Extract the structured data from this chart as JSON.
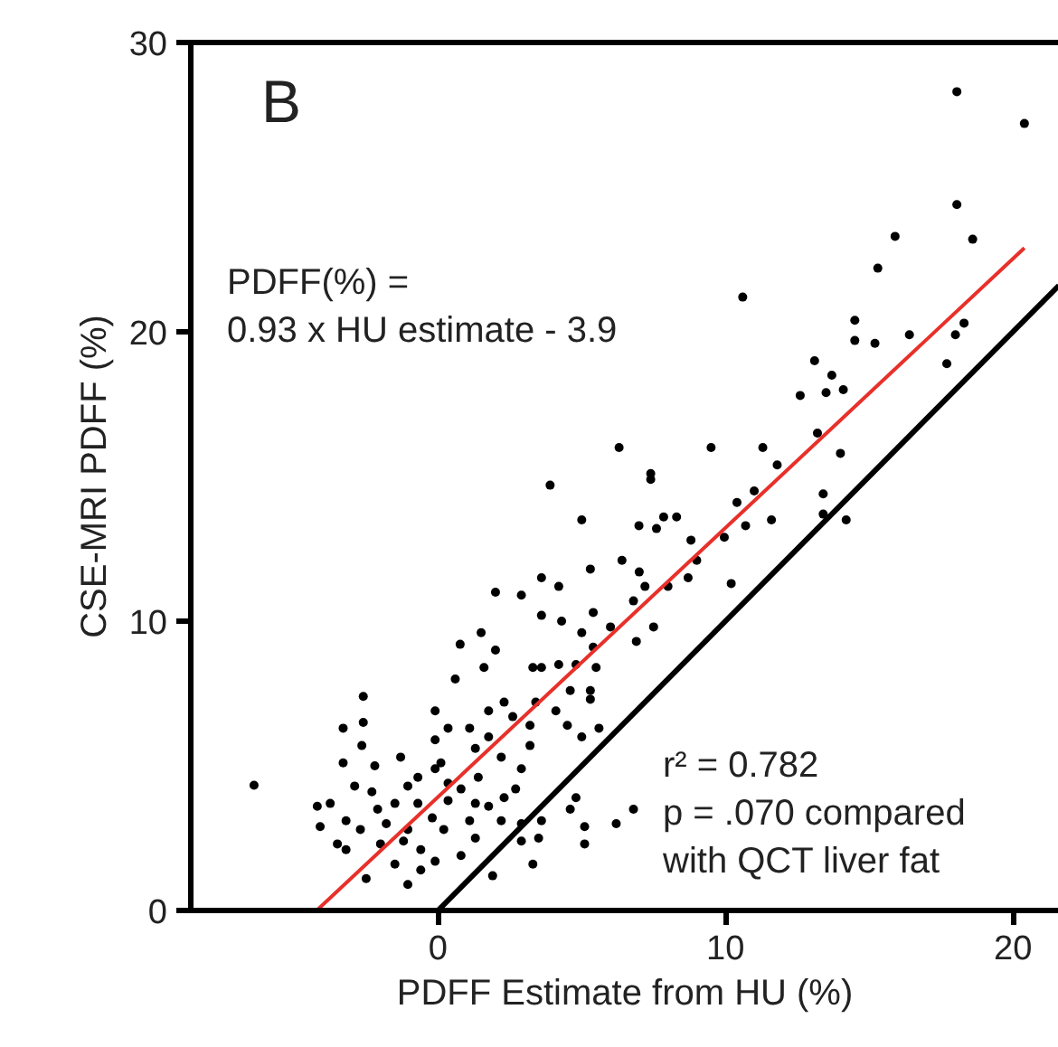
{
  "chart_data": {
    "type": "scatter",
    "xlabel": "PDFF Estimate from HU (%)",
    "ylabel": "CSE-MRI PDFF (%)",
    "xlim": [
      -8.6,
      21.6
    ],
    "ylim": [
      0,
      30
    ],
    "xticks": [
      0,
      10,
      20
    ],
    "yticks": [
      0,
      10,
      20,
      30
    ],
    "annotations": [
      "B",
      "PDFF(%) =\n0.93 x HU estimate - 3.9",
      "r² = 0.782\np = .070 compared\nwith QCT liver fat"
    ],
    "series": [
      {
        "color": "#000000",
        "marker": "circle",
        "x": [
          -6.4,
          18.05,
          20.4,
          18.05,
          18.6,
          15.9,
          15.3,
          10.6,
          14.5,
          14.5,
          15.2,
          16.4,
          18.3,
          18.0,
          17.7,
          13.1,
          13.7,
          13.5,
          14.1,
          12.6,
          13.2,
          14.0,
          14.2,
          13.4,
          13.4,
          11.8,
          11.3,
          9.5,
          11.0,
          10.4,
          11.6,
          10.7,
          9.96,
          10.2,
          8.8,
          9.0,
          8.7,
          7.85,
          8.3,
          7.6,
          6.99,
          7.4,
          7.4,
          6.3,
          3.9,
          5.0,
          5.3,
          6.4,
          7.0,
          7.2,
          8.0,
          6.8,
          7.5,
          6.9,
          6.0,
          3.6,
          4.2,
          3.6,
          4.3,
          5.0,
          5.4,
          5.4,
          2.0,
          2.9,
          1.5,
          0.77,
          2.0,
          1.6,
          2.3,
          0.6,
          3.3,
          3.6,
          4.2,
          4.8,
          5.5,
          4.6,
          5.3,
          5.3,
          4.1,
          4.5,
          5.0,
          5.6,
          3.4,
          3.2,
          3.2,
          2.6,
          1.76,
          -0.1,
          0.35,
          1.1,
          1.76,
          -0.1,
          -2.6,
          -3.3,
          -2.6,
          -2.65,
          -3.3,
          -2.2,
          -1.3,
          -0.7,
          0.1,
          1.3,
          2.2,
          2.9,
          2.7,
          4.8,
          4.6,
          5.1,
          5.1,
          3.6,
          3.5,
          3.3,
          1.9,
          6.2,
          6.8,
          2.9,
          2.9,
          2.2,
          1.3,
          0.8,
          -1.05,
          -0.6,
          -2.5,
          -1.5,
          -3.2,
          -3.5,
          -4.1,
          -4.2,
          -3.75,
          -3.2,
          -2.9,
          -2.3,
          -2.1,
          -1.8,
          -2.0,
          -1.2,
          -1.05,
          -0.7,
          -0.2,
          0.2,
          0.35,
          0.8,
          1.3,
          1.1,
          1.76,
          2.3,
          1.4,
          -0.1,
          0.35,
          -1.5,
          -2.7,
          -0.6,
          -0.1,
          -1.05
        ],
        "values": [
          4.33,
          28.3,
          27.2,
          24.4,
          23.2,
          23.3,
          22.2,
          21.2,
          20.4,
          19.7,
          19.6,
          19.9,
          20.3,
          19.9,
          18.9,
          19.0,
          18.5,
          17.9,
          18.0,
          17.8,
          16.5,
          15.8,
          13.5,
          14.4,
          13.7,
          15.4,
          16.0,
          16.0,
          14.5,
          14.1,
          13.5,
          13.3,
          12.9,
          11.3,
          12.8,
          12.1,
          11.5,
          13.6,
          13.6,
          13.2,
          13.3,
          15.1,
          14.9,
          16.0,
          14.7,
          13.5,
          11.8,
          12.1,
          11.7,
          11.2,
          11.2,
          10.7,
          9.8,
          9.3,
          9.8,
          11.5,
          11.2,
          10.2,
          10.0,
          9.6,
          10.3,
          9.1,
          11.0,
          10.9,
          9.6,
          9.2,
          9.0,
          8.4,
          7.2,
          8.0,
          8.4,
          8.4,
          8.5,
          8.5,
          8.4,
          7.6,
          7.6,
          7.3,
          6.9,
          6.4,
          6.0,
          6.3,
          7.2,
          6.4,
          5.7,
          6.7,
          6.9,
          6.9,
          6.3,
          6.3,
          6.0,
          5.9,
          7.4,
          6.3,
          6.5,
          5.7,
          5.1,
          5.0,
          5.3,
          4.6,
          5.1,
          5.6,
          5.3,
          4.9,
          4.2,
          3.9,
          3.5,
          2.9,
          2.3,
          3.1,
          2.5,
          1.6,
          1.2,
          3.0,
          3.5,
          3.0,
          2.4,
          3.1,
          2.5,
          1.9,
          0.9,
          1.4,
          1.1,
          1.6,
          2.1,
          2.3,
          2.9,
          3.6,
          3.7,
          3.1,
          4.3,
          4.1,
          3.5,
          3.0,
          2.3,
          2.4,
          4.3,
          3.7,
          3.2,
          2.8,
          3.8,
          4.2,
          3.7,
          3.1,
          3.6,
          3.9,
          4.6,
          4.9,
          4.4,
          3.7,
          2.8,
          2.1,
          1.7,
          2.8
        ]
      },
      {
        "type": "line",
        "color": "#e8302a",
        "x": [
          -4.22,
          20.4
        ],
        "values": [
          0,
          22.9
        ]
      },
      {
        "type": "line",
        "color": "#000000",
        "x": [
          0,
          21.6
        ],
        "values": [
          0,
          21.6
        ]
      }
    ]
  }
}
